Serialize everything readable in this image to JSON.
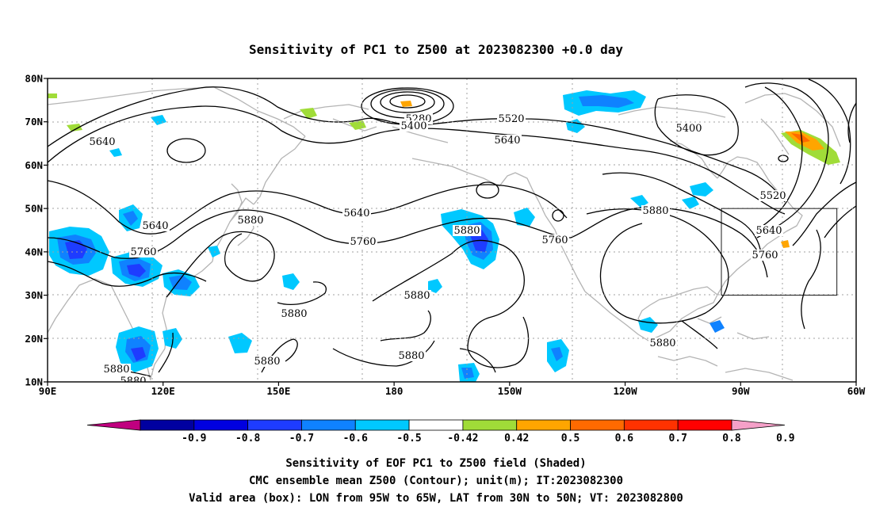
{
  "chart_data": {
    "type": "heatmap",
    "title": "Sensitivity of PC1 to Z500 at 2023082300 +0.0 day",
    "map_extent": {
      "lon": [
        90,
        300
      ],
      "lat": [
        10,
        80
      ]
    },
    "grid": true,
    "lat_ticks": [
      "80N",
      "70N",
      "60N",
      "50N",
      "40N",
      "30N",
      "20N",
      "10N"
    ],
    "lon_ticks": [
      "90E",
      "120E",
      "150E",
      "180",
      "150W",
      "120W",
      "90W",
      "60W"
    ],
    "valid_box": {
      "lon": [
        265,
        295
      ],
      "lat": [
        30,
        50
      ]
    },
    "colorbar": {
      "labels": [
        "-0.9",
        "-0.8",
        "-0.7",
        "-0.6",
        "-0.5",
        "-0.42",
        "0.42",
        "0.5",
        "0.6",
        "0.7",
        "0.8",
        "0.9"
      ],
      "colors": [
        "#c0007f",
        "#0000a0",
        "#0000e0",
        "#1e3cff",
        "#0f82ff",
        "#00c8ff",
        "#ffffff",
        "#a0dc38",
        "#ffa500",
        "#ff6a00",
        "#ff3200",
        "#ff0000",
        "#f5a0c8"
      ]
    },
    "contour_labels": [
      "5280",
      "5400",
      "5520",
      "5640",
      "5640",
      "5400",
      "5640",
      "5640",
      "5520",
      "5640",
      "5880",
      "5760",
      "5760",
      "5880",
      "5880",
      "5760",
      "5880",
      "5760",
      "5880",
      "5880",
      "5880",
      "5880",
      "5880",
      "5880",
      "5880"
    ],
    "caption": [
      "Sensitivity of EOF PC1 to Z500 field (Shaded)",
      "CMC ensemble mean Z500 (Contour); unit(m); IT:2023082300",
      "Valid area (box): LON from 95W to 65W, LAT from 30N to 50N; VT: 2023082800"
    ]
  }
}
